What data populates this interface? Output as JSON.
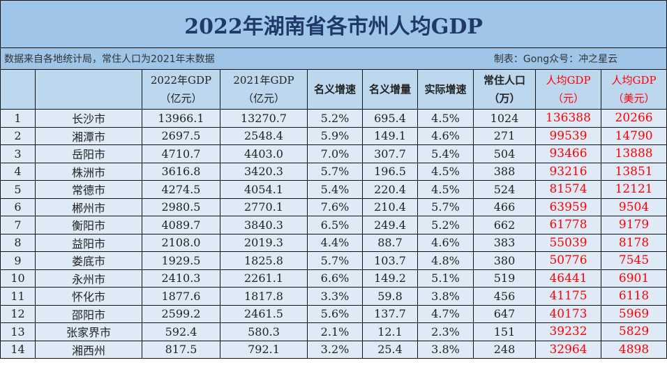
{
  "title": "2022年湖南省各市州人均GDP",
  "source_note": "数据来自各地统计局，常住人口为2021年末数据",
  "credit": "制表：Gong众号：冲之星云",
  "headers": [
    {
      "l1": "",
      "l2": ""
    },
    {
      "l1": "",
      "l2": ""
    },
    {
      "l1": "2022年GDP",
      "l2": "（亿元）"
    },
    {
      "l1": "2021年GDP",
      "l2": "（亿元）"
    },
    {
      "l1": "名义增速",
      "l2": ""
    },
    {
      "l1": "名义增量",
      "l2": ""
    },
    {
      "l1": "实际增速",
      "l2": ""
    },
    {
      "l1": "常住人口",
      "l2": "（万）"
    },
    {
      "l1": "人均GDP",
      "l2": "（元）"
    },
    {
      "l1": "人均GDP",
      "l2": "（美元）"
    }
  ],
  "highlight_color": "#ff0000",
  "rows": [
    [
      "1",
      "长沙市",
      "13966.1",
      "13270.7",
      "5.2%",
      "695.4",
      "4.5%",
      "1024",
      "136388",
      "20266"
    ],
    [
      "2",
      "湘潭市",
      "2697.5",
      "2548.4",
      "5.9%",
      "149.1",
      "4.6%",
      "271",
      "99539",
      "14790"
    ],
    [
      "3",
      "岳阳市",
      "4710.7",
      "4403.0",
      "7.0%",
      "307.7",
      "5.4%",
      "504",
      "93466",
      "13888"
    ],
    [
      "4",
      "株洲市",
      "3616.8",
      "3420.3",
      "5.7%",
      "196.5",
      "4.5%",
      "388",
      "93216",
      "13851"
    ],
    [
      "5",
      "常德市",
      "4274.5",
      "4054.1",
      "5.4%",
      "220.4",
      "4.5%",
      "524",
      "81574",
      "12121"
    ],
    [
      "6",
      "郴州市",
      "2980.5",
      "2770.1",
      "7.6%",
      "210.4",
      "5.7%",
      "466",
      "63959",
      "9504"
    ],
    [
      "7",
      "衡阳市",
      "4089.7",
      "3840.3",
      "6.5%",
      "249.4",
      "5.2%",
      "662",
      "61778",
      "9179"
    ],
    [
      "8",
      "益阳市",
      "2108.0",
      "2019.3",
      "4.4%",
      "88.7",
      "4.6%",
      "383",
      "55039",
      "8178"
    ],
    [
      "9",
      "娄底市",
      "1929.5",
      "1825.8",
      "5.7%",
      "103.7",
      "4.8%",
      "380",
      "50776",
      "7545"
    ],
    [
      "10",
      "永州市",
      "2410.3",
      "2261.1",
      "6.6%",
      "149.2",
      "5.1%",
      "519",
      "46441",
      "6901"
    ],
    [
      "11",
      "怀化市",
      "1877.6",
      "1817.8",
      "3.3%",
      "59.8",
      "3.8%",
      "456",
      "41175",
      "6118"
    ],
    [
      "12",
      "邵阳市",
      "2599.2",
      "2461.5",
      "5.6%",
      "137.7",
      "4.7%",
      "647",
      "40173",
      "5969"
    ],
    [
      "13",
      "张家界市",
      "592.4",
      "580.3",
      "2.1%",
      "12.1",
      "2.3%",
      "151",
      "39232",
      "5829"
    ],
    [
      "14",
      "湘西州",
      "817.5",
      "792.1",
      "3.2%",
      "25.4",
      "3.8%",
      "248",
      "32964",
      "4898"
    ]
  ]
}
